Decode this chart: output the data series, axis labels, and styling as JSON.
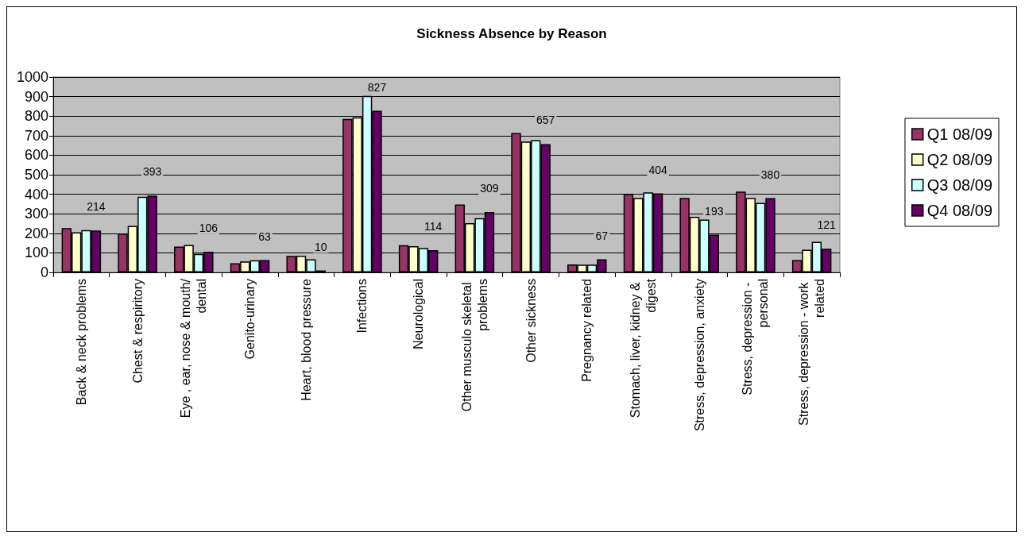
{
  "chart_data": {
    "type": "bar",
    "title": "Sickness Absence by Reason",
    "categories": [
      "Back & neck problems",
      "Chest & respiritory",
      "Eye , ear, nose & mouth/dental",
      "Genito-urinary",
      "Heart, blood pressure",
      "Infections",
      "Neurological",
      "Other musculo skeletal problems",
      "Other sickness",
      "Pregnancy related",
      "Stomach, liver, kidney & digest",
      "Stress, depression, anxiety",
      "Stress, depression - personal",
      "Stress, depression - work related"
    ],
    "series": [
      {
        "name": "Q1 08/09",
        "color": "#993366",
        "values": [
          227,
          199,
          132,
          47,
          84,
          786,
          139,
          348,
          713,
          41,
          401,
          381,
          414,
          63
        ]
      },
      {
        "name": "Q2 08/09",
        "color": "#ffffcc",
        "values": [
          205,
          238,
          140,
          56,
          85,
          794,
          134,
          252,
          670,
          40,
          381,
          285,
          381,
          116
        ]
      },
      {
        "name": "Q3 08/09",
        "color": "#ccffff",
        "values": [
          216,
          387,
          95,
          62,
          67,
          903,
          125,
          277,
          677,
          40,
          410,
          270,
          356,
          156
        ]
      },
      {
        "name": "Q4 08/09",
        "color": "#660066",
        "values": [
          214,
          393,
          106,
          63,
          10,
          827,
          114,
          309,
          657,
          67,
          404,
          193,
          380,
          121
        ],
        "value_labels": [
          "214",
          "393",
          "106",
          "63",
          "10",
          "827",
          "114",
          "309",
          "657",
          "67",
          "404",
          "193",
          "380",
          "121"
        ]
      }
    ],
    "ylim": [
      0,
      1000
    ],
    "yticks": [
      0,
      100,
      200,
      300,
      400,
      500,
      600,
      700,
      800,
      900,
      1000
    ],
    "grid": "y",
    "legend": "right"
  }
}
